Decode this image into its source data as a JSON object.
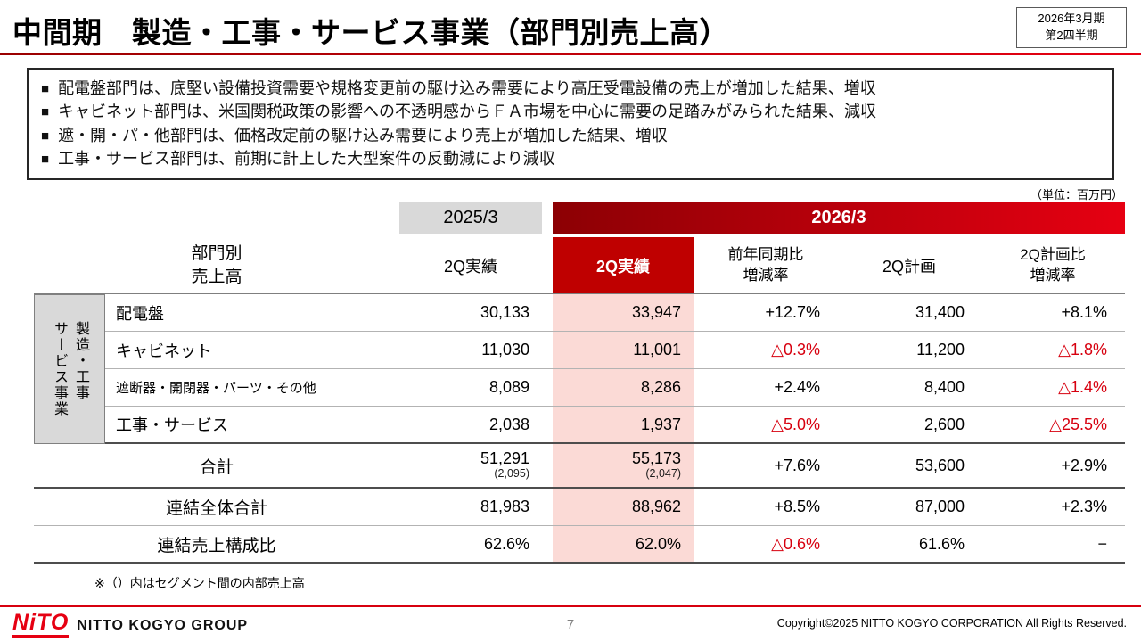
{
  "slide": {
    "title": "中間期　製造・工事・サービス事業（部門別売上高）",
    "period_box": [
      "2026年3月期",
      "第2四半期"
    ],
    "unit_note": "（単位：百万円）",
    "footnote": "※（）内はセグメント間の内部売上高"
  },
  "highlights": {
    "bullet": "■",
    "items": [
      "配電盤部門は、底堅い設備投資需要や規格変更前の駆け込み需要により高圧受電設備の売上が増加した結果、増収",
      "キャビネット部門は、米国関税政策の影響への不透明感からＦＡ市場を中心に需要の足踏みがみられた結果、減収",
      "遮・開・パ・他部門は、価格改定前の駆け込み需要により売上が増加した結果、増収",
      "工事・サービス部門は、前期に計上した大型案件の反動減により減収"
    ]
  },
  "table": {
    "groups": {
      "prev": "2025/3",
      "curr": "2026/3"
    },
    "headers": {
      "label": "部門別\n売上高",
      "prev_q2": "2Q実績",
      "curr_q2": "2Q実績",
      "yoy": "前年同期比\n増減率",
      "plan": "2Q計画",
      "vs_plan": "2Q計画比\n増減率"
    },
    "segment_label": "製造・工事\nサービス事業",
    "rows": [
      {
        "label": "配電盤",
        "prev": "30,133",
        "curr": "33,947",
        "yoy": "+12.7%",
        "plan": "31,400",
        "vs_plan": "+8.1%"
      },
      {
        "label": "キャビネット",
        "prev": "11,030",
        "curr": "11,001",
        "yoy": "△0.3%",
        "plan": "11,200",
        "vs_plan": "△1.8%"
      },
      {
        "label": "遮断器・開閉器・パーツ・その他",
        "prev": "8,089",
        "curr": "8,286",
        "yoy": "+2.4%",
        "plan": "8,400",
        "vs_plan": "△1.4%"
      },
      {
        "label": "工事・サービス",
        "prev": "2,038",
        "curr": "1,937",
        "yoy": "△5.0%",
        "plan": "2,600",
        "vs_plan": "△25.5%"
      }
    ],
    "total_row": {
      "label": "合計",
      "prev": "51,291",
      "prev_sub": "(2,095)",
      "curr": "55,173",
      "curr_sub": "(2,047)",
      "yoy": "+7.6%",
      "plan": "53,600",
      "vs_plan": "+2.9%"
    },
    "consolidated_row": {
      "label": "連結全体合計",
      "prev": "81,983",
      "curr": "88,962",
      "yoy": "+8.5%",
      "plan": "87,000",
      "vs_plan": "+2.3%"
    },
    "ratio_row": {
      "label": "連結売上構成比",
      "prev": "62.6%",
      "curr": "62.0%",
      "yoy": "△0.6%",
      "plan": "61.6%",
      "vs_plan": "−"
    }
  },
  "footer": {
    "logo": "NiTO",
    "brand": "NITTO KOGYO GROUP",
    "page": "7",
    "copyright": "Copyright©2025 NITTO KOGYO CORPORATION All Rights Reserved."
  }
}
